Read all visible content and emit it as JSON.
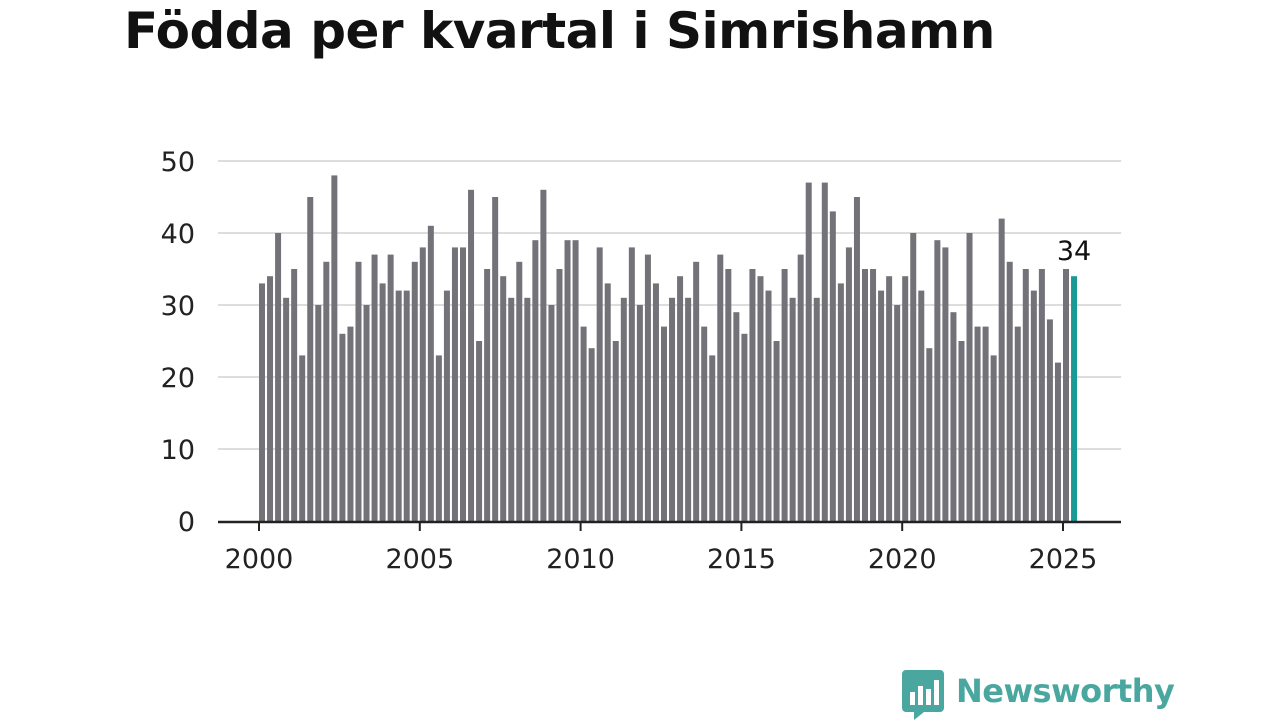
{
  "title": "Födda per kvartal i Simrishamn",
  "brand": {
    "name": "Newsworthy",
    "color": "#4aa7a0",
    "icon": "bar-chart-speech-bubble-icon"
  },
  "colors": {
    "bar": "#737278",
    "highlight": "#1a9a94",
    "grid": "#dddddd",
    "axis": "#222222",
    "text": "#222222"
  },
  "chart_data": {
    "type": "bar",
    "title": "Födda per kvartal i Simrishamn",
    "xlabel": "",
    "ylabel": "",
    "ylim": [
      0,
      50
    ],
    "yticks": [
      0,
      10,
      20,
      30,
      40,
      50
    ],
    "xticks": [
      "2000",
      "2005",
      "2010",
      "2015",
      "2020",
      "2025"
    ],
    "x_start_year": 2000,
    "periods_per_year": 4,
    "grid": true,
    "highlight_last": true,
    "last_label": "34",
    "values": [
      33,
      34,
      40,
      31,
      35,
      23,
      45,
      30,
      36,
      48,
      26,
      27,
      36,
      30,
      37,
      33,
      37,
      32,
      32,
      36,
      38,
      41,
      23,
      32,
      38,
      38,
      46,
      25,
      35,
      45,
      34,
      31,
      36,
      31,
      39,
      46,
      30,
      35,
      39,
      39,
      27,
      24,
      38,
      33,
      25,
      31,
      38,
      30,
      37,
      33,
      27,
      31,
      34,
      31,
      36,
      27,
      23,
      37,
      35,
      29,
      26,
      35,
      34,
      32,
      25,
      35,
      31,
      37,
      47,
      31,
      47,
      43,
      33,
      38,
      45,
      35,
      35,
      32,
      34,
      30,
      34,
      40,
      32,
      24,
      39,
      38,
      29,
      25,
      40,
      27,
      27,
      23,
      42,
      36,
      27,
      35,
      32,
      35,
      28,
      22,
      35,
      34
    ]
  }
}
